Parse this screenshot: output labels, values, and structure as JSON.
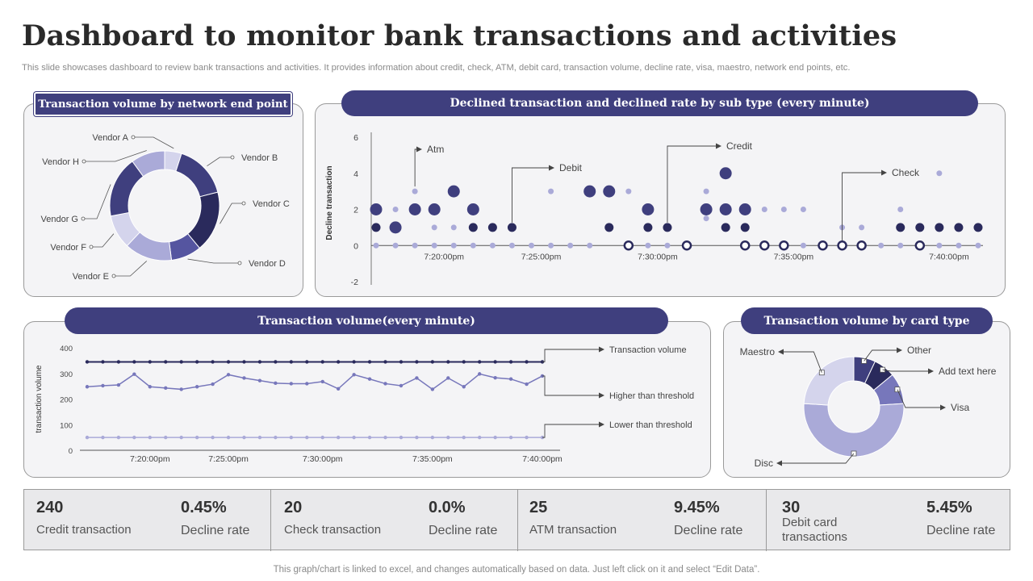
{
  "header": {
    "title": "Dashboard to monitor bank transactions and activities",
    "subtitle": "This slide showcases dashboard to review bank transactions and activities. It provides information about credit, check, ATM,   debit card, transaction volume, decline rate, visa, maestro, network end points, etc."
  },
  "colors": {
    "accent": "#3f3f7e",
    "dark": "#2a2a5c",
    "mid": "#7777bb",
    "light": "#aaaad8",
    "pale": "#d4d4ec",
    "panel_bg": "#f4f4f6"
  },
  "panels": {
    "network": "Transaction volume by network end point",
    "declined": "Declined transaction and declined rate by sub type (every minute)",
    "volume": "Transaction volume(every minute)",
    "card": "Transaction volume by card type"
  },
  "chart_data": [
    {
      "id": "network",
      "type": "pie",
      "title": "Transaction volume by network end point",
      "labels": [
        "Vendor A",
        "Vendor B",
        "Vendor C",
        "Vendor D",
        "Vendor E",
        "Vendor F",
        "Vendor G",
        "Vendor H"
      ],
      "values": [
        5,
        16,
        18,
        9,
        14,
        10,
        18,
        10
      ],
      "colors": [
        "#d4d4ec",
        "#3f3f7e",
        "#2a2a5c",
        "#5555a0",
        "#aaaad8",
        "#d4d4ec",
        "#3f3f7e",
        "#aaaad8"
      ]
    },
    {
      "id": "declined",
      "type": "scatter",
      "title": "Declined transaction and declined rate by sub type (every minute)",
      "ylabel": "Decline transaction",
      "ylim": [
        -2,
        6
      ],
      "yticks": [
        -2,
        0,
        2,
        4,
        6
      ],
      "xlim": [
        0,
        30
      ],
      "xticks": [
        {
          "label": "7:20:00pm",
          "x": 3.5
        },
        {
          "label": "7:25:00pm",
          "x": 8.5
        },
        {
          "label": "7:30:00pm",
          "x": 14.5
        },
        {
          "label": "7:35:00pm",
          "x": 21.5
        },
        {
          "label": "7:40:00pm",
          "x": 29.5
        }
      ],
      "annotations": [
        {
          "label": "Atm",
          "x": 2,
          "y": 3
        },
        {
          "label": "Debit",
          "x": 7,
          "y": 1
        },
        {
          "label": "Credit",
          "x": 15,
          "y": 1
        },
        {
          "label": "Check",
          "x": 24,
          "y": 0
        }
      ],
      "series": [
        {
          "name": "light-markers",
          "color": "#aaaad8",
          "size": 3.5,
          "ring": false,
          "points": [
            [
              1,
              2
            ],
            [
              2,
              3
            ],
            [
              3,
              1
            ],
            [
              4,
              1
            ],
            [
              7,
              1
            ],
            [
              9,
              3
            ],
            [
              13,
              3
            ],
            [
              14,
              1
            ],
            [
              17,
              3
            ],
            [
              17,
              1.5
            ],
            [
              20,
              2
            ],
            [
              21,
              2
            ],
            [
              22,
              2
            ],
            [
              24,
              1
            ],
            [
              25,
              1
            ],
            [
              27,
              2
            ],
            [
              29,
              4
            ]
          ]
        },
        {
          "name": "small-dark",
          "color": "#2a2a5c",
          "size": 5.5,
          "ring": false,
          "points": [
            [
              0,
              1
            ],
            [
              5,
              1
            ],
            [
              6,
              1
            ],
            [
              7,
              1
            ],
            [
              12,
              1
            ],
            [
              14,
              1
            ],
            [
              15,
              1
            ],
            [
              18,
              1
            ],
            [
              19,
              1
            ],
            [
              27,
              1
            ],
            [
              28,
              1
            ],
            [
              29,
              1
            ],
            [
              30,
              1
            ],
            [
              31,
              1
            ]
          ]
        },
        {
          "name": "large-mid",
          "color": "#3f3f7e",
          "size": 7.5,
          "ring": false,
          "points": [
            [
              0,
              2
            ],
            [
              1,
              1
            ],
            [
              2,
              2
            ],
            [
              3,
              2
            ],
            [
              4,
              3
            ],
            [
              5,
              2
            ],
            [
              14,
              2
            ],
            [
              17,
              2
            ],
            [
              18,
              2
            ],
            [
              19,
              2
            ],
            [
              12,
              3
            ],
            [
              11,
              3
            ],
            [
              18,
              4
            ]
          ]
        },
        {
          "name": "zero-line",
          "color": "#aaaad8",
          "size": 3.5,
          "ring": false,
          "points": [
            [
              0,
              0
            ],
            [
              1,
              0
            ],
            [
              2,
              0
            ],
            [
              3,
              0
            ],
            [
              4,
              0
            ],
            [
              5,
              0
            ],
            [
              6,
              0
            ],
            [
              7,
              0
            ],
            [
              8,
              0
            ],
            [
              9,
              0
            ],
            [
              10,
              0
            ],
            [
              11,
              0
            ],
            [
              13,
              0
            ],
            [
              14,
              0
            ],
            [
              15,
              0
            ],
            [
              16,
              0
            ],
            [
              21,
              0
            ],
            [
              22,
              0
            ],
            [
              23,
              0
            ],
            [
              26,
              0
            ],
            [
              27,
              0
            ],
            [
              28,
              0
            ],
            [
              29,
              0
            ],
            [
              30,
              0
            ],
            [
              31,
              0
            ]
          ]
        },
        {
          "name": "rings",
          "color": "#2a2a5c",
          "size": 5,
          "ring": true,
          "points": [
            [
              13,
              0
            ],
            [
              16,
              0
            ],
            [
              19,
              0
            ],
            [
              20,
              0
            ],
            [
              21,
              0
            ],
            [
              23,
              0
            ],
            [
              24,
              0
            ],
            [
              25,
              0
            ],
            [
              28,
              0
            ]
          ]
        }
      ]
    },
    {
      "id": "volume",
      "type": "line",
      "title": "Transaction volume(every minute)",
      "ylabel": "transaction volume",
      "ylim": [
        0,
        400
      ],
      "yticks": [
        0,
        100,
        200,
        300,
        400
      ],
      "xticks": [
        {
          "label": "7:20:00pm",
          "x": 4
        },
        {
          "label": "7:25:00pm",
          "x": 9
        },
        {
          "label": "7:30:00pm",
          "x": 15
        },
        {
          "label": "7:35:00pm",
          "x": 22
        },
        {
          "label": "7:40:00pm",
          "x": 29
        }
      ],
      "series": [
        {
          "name": "Transaction volume",
          "color": "#2a2a5c",
          "values": [
            345,
            345,
            345,
            345,
            345,
            345,
            345,
            345,
            345,
            345,
            345,
            345,
            345,
            345,
            345,
            345,
            345,
            345,
            345,
            345,
            345,
            345,
            345,
            345,
            345,
            345,
            345,
            345,
            345,
            345
          ]
        },
        {
          "name": "Higher than threshold",
          "color": "#7777bb",
          "values": [
            248,
            252,
            255,
            297,
            248,
            243,
            238,
            248,
            258,
            295,
            282,
            272,
            262,
            260,
            260,
            268,
            240,
            295,
            278,
            260,
            252,
            282,
            238,
            282,
            248,
            298,
            283,
            278,
            258,
            290
          ]
        },
        {
          "name": "Lower than threshold",
          "color": "#aaaad8",
          "values": [
            50,
            50,
            50,
            50,
            50,
            50,
            50,
            50,
            50,
            50,
            50,
            50,
            50,
            50,
            50,
            50,
            50,
            50,
            50,
            50,
            50,
            50,
            50,
            50,
            50,
            50,
            50,
            50,
            50,
            50
          ]
        }
      ]
    },
    {
      "id": "card",
      "type": "pie",
      "title": "Transaction volume by card type",
      "labels": [
        "Other",
        "Add text here",
        "Visa",
        "Disc",
        "Maestro"
      ],
      "values": [
        7,
        7,
        10,
        52,
        24
      ],
      "colors": [
        "#3f3f7e",
        "#2a2a5c",
        "#7777bb",
        "#aaaad8",
        "#d4d4ec"
      ]
    }
  ],
  "kpis": [
    {
      "value": "240",
      "label": "Credit transaction",
      "rate": "0.45%",
      "rate_label": "Decline rate"
    },
    {
      "value": "20",
      "label": "Check transaction",
      "rate": "0.0%",
      "rate_label": "Decline rate"
    },
    {
      "value": "25",
      "label": "ATM transaction",
      "rate": "9.45%",
      "rate_label": "Decline rate"
    },
    {
      "value": "30",
      "label": "Debit card transactions",
      "rate": "5.45%",
      "rate_label": "Decline rate"
    }
  ],
  "footer": "This graph/chart is linked to excel,  and changes automatically based on data. Just left click on it and select “Edit Data”."
}
